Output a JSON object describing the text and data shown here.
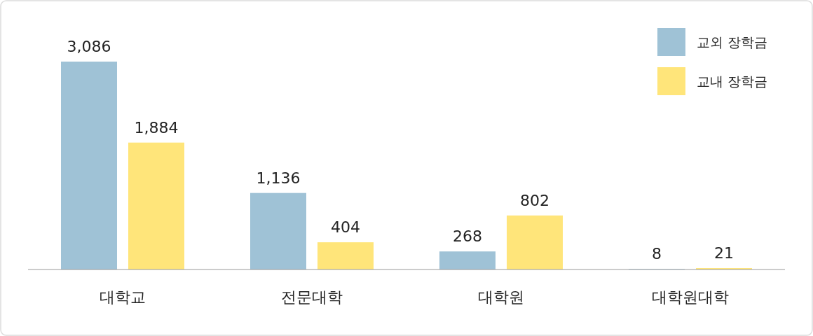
{
  "chart_data": {
    "type": "bar",
    "categories": [
      "대학교",
      "전문대학",
      "대학원",
      "대학원대학"
    ],
    "series": [
      {
        "name": "교외 장학금",
        "color": "#9fc2d6",
        "values": [
          3086,
          1136,
          268,
          8
        ],
        "value_labels": [
          "3,086",
          "1,136",
          "268",
          "8"
        ]
      },
      {
        "name": "교내 장학금",
        "color": "#ffe57a",
        "values": [
          1884,
          404,
          802,
          21
        ],
        "value_labels": [
          "1,884",
          "404",
          "802",
          "21"
        ]
      }
    ],
    "legend": "top right"
  }
}
